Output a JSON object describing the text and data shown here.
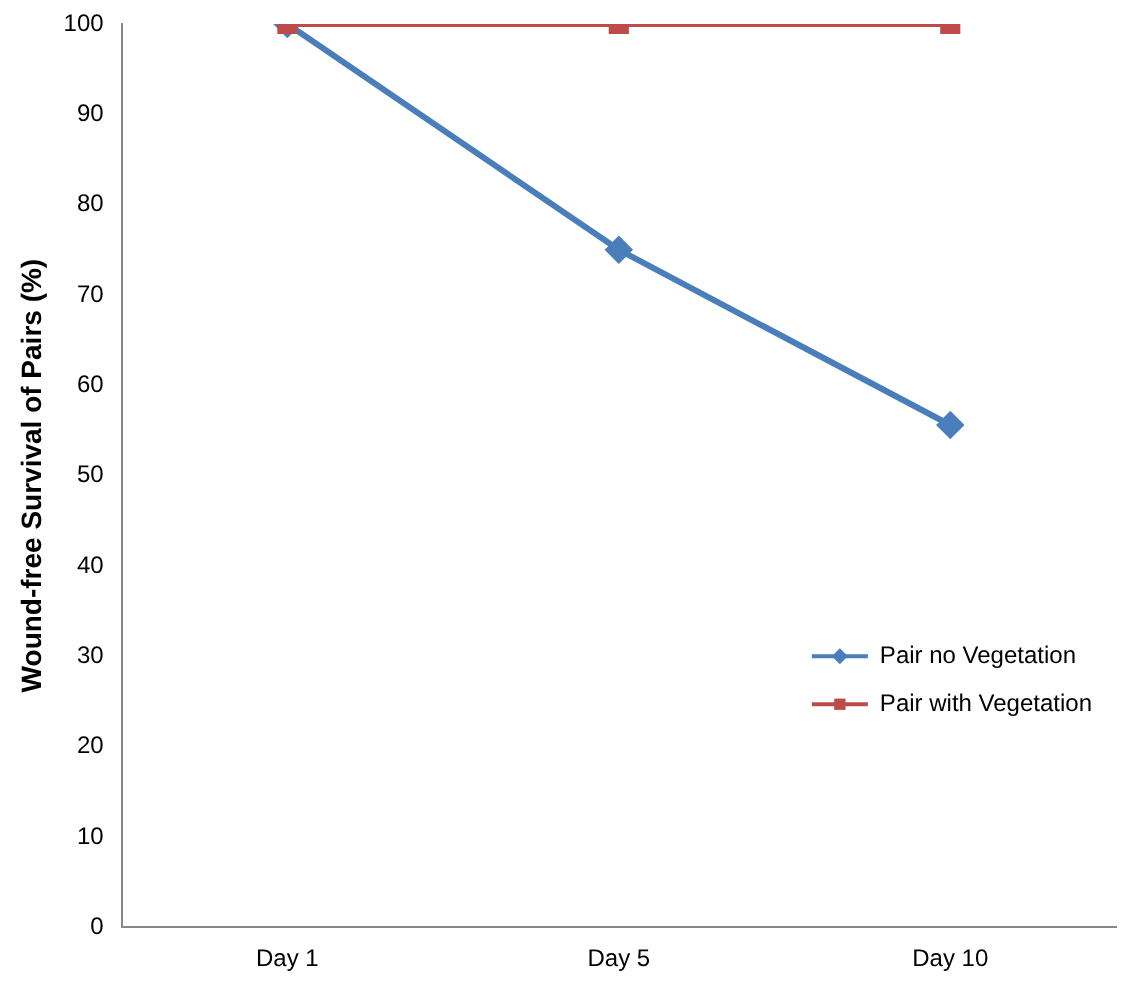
{
  "chart_data": {
    "type": "line",
    "ylabel": "Wound-free Survival of Pairs (%)",
    "categories": [
      "Day 1",
      "Day 5",
      "Day 10"
    ],
    "series": [
      {
        "name": "Pair no Vegetation",
        "color": "#4a7ebb",
        "marker": "diamond",
        "values": [
          100,
          75,
          55.6
        ]
      },
      {
        "name": "Pair with Vegetation",
        "color": "#be4b48",
        "marker": "square",
        "values": [
          100,
          100,
          100
        ]
      }
    ],
    "ylim": [
      0,
      100
    ],
    "yticks": [
      0,
      10,
      20,
      30,
      40,
      50,
      60,
      70,
      80,
      90,
      100
    ],
    "grid": false,
    "legend": "bottom right"
  }
}
